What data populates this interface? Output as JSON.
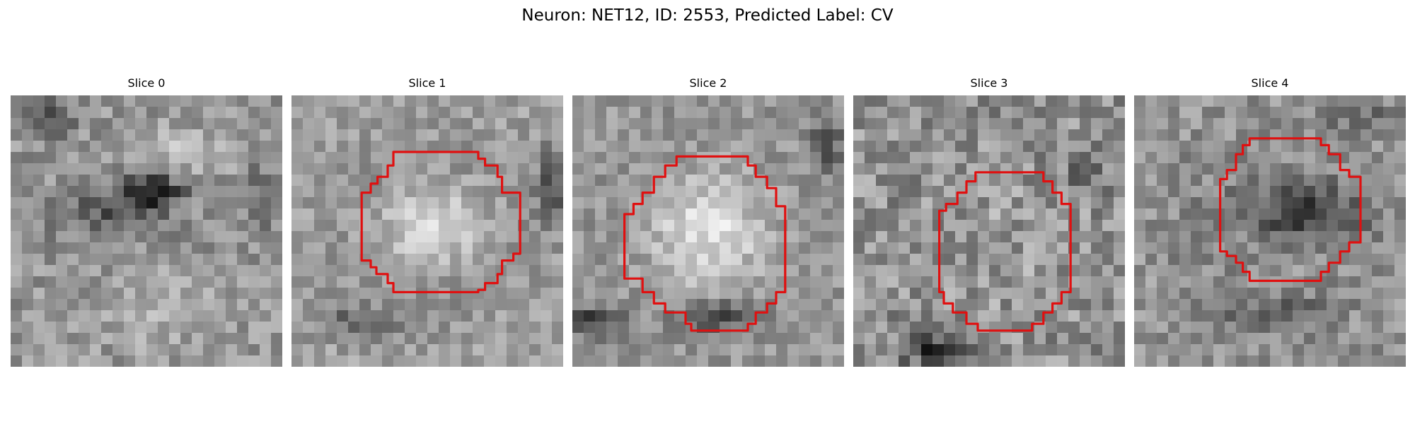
{
  "figure": {
    "title": "Neuron: NET12, ID: 2553, Predicted Label: CV"
  },
  "grid_cells": 24,
  "contour_color": "#e01010",
  "panels": [
    {
      "title": "Slice 0",
      "contour": [],
      "pattern": {
        "seed": 11,
        "base": 150,
        "noise": 70,
        "blobs": [
          {
            "cx": 12.5,
            "cy": 8.5,
            "rx": 3.0,
            "ry": 1.6,
            "d": -110
          },
          {
            "cx": 8.5,
            "cy": 10.5,
            "rx": 5.5,
            "ry": 2.5,
            "d": -60
          },
          {
            "cx": 3.5,
            "cy": 2.0,
            "rx": 2.5,
            "ry": 2.0,
            "d": -55
          },
          {
            "cx": 22.0,
            "cy": 9.0,
            "rx": 2.0,
            "ry": 4.0,
            "d": -40
          },
          {
            "cx": 16.0,
            "cy": 5.0,
            "rx": 4.0,
            "ry": 2.0,
            "d": 45
          },
          {
            "cx": 12.0,
            "cy": 19.0,
            "rx": 5.0,
            "ry": 3.0,
            "d": 35
          }
        ]
      }
    },
    {
      "title": "Slice 1",
      "contour": [
        [
          9.0,
          5.0
        ],
        [
          16.5,
          5.0
        ],
        [
          16.5,
          5.6
        ],
        [
          17.1,
          5.6
        ],
        [
          17.1,
          6.2
        ],
        [
          18.2,
          6.2
        ],
        [
          18.2,
          7.2
        ],
        [
          18.6,
          7.2
        ],
        [
          18.6,
          8.6
        ],
        [
          20.2,
          8.6
        ],
        [
          20.2,
          10.5
        ],
        [
          20.2,
          14.0
        ],
        [
          19.6,
          14.0
        ],
        [
          19.6,
          14.6
        ],
        [
          18.6,
          14.6
        ],
        [
          18.6,
          15.8
        ],
        [
          18.2,
          15.8
        ],
        [
          18.2,
          16.6
        ],
        [
          17.1,
          16.6
        ],
        [
          17.1,
          17.2
        ],
        [
          16.5,
          17.2
        ],
        [
          16.5,
          17.4
        ],
        [
          9.0,
          17.4
        ],
        [
          9.0,
          16.6
        ],
        [
          8.5,
          16.6
        ],
        [
          8.5,
          15.8
        ],
        [
          7.5,
          15.8
        ],
        [
          7.5,
          15.2
        ],
        [
          7.0,
          15.2
        ],
        [
          7.0,
          14.6
        ],
        [
          6.7,
          14.6
        ],
        [
          6.2,
          14.6
        ],
        [
          6.2,
          8.6
        ],
        [
          6.7,
          8.6
        ],
        [
          7.0,
          8.6
        ],
        [
          7.0,
          7.8
        ],
        [
          7.6,
          7.8
        ],
        [
          7.6,
          7.2
        ],
        [
          8.5,
          7.2
        ],
        [
          8.5,
          6.2
        ],
        [
          9.0,
          6.2
        ]
      ],
      "pattern": {
        "seed": 23,
        "base": 160,
        "noise": 60,
        "blobs": [
          {
            "cx": 12.5,
            "cy": 11.5,
            "rx": 7.5,
            "ry": 6.5,
            "d": -90
          },
          {
            "cx": 12.5,
            "cy": 11.5,
            "rx": 5.8,
            "ry": 4.8,
            "d": 150
          },
          {
            "cx": 23.0,
            "cy": 8.0,
            "rx": 1.5,
            "ry": 3.5,
            "d": -70
          },
          {
            "cx": 6.0,
            "cy": 20.0,
            "rx": 4.0,
            "ry": 1.5,
            "d": -60
          }
        ]
      }
    },
    {
      "title": "Slice 2",
      "contour": [
        [
          9.2,
          5.4
        ],
        [
          15.5,
          5.4
        ],
        [
          15.5,
          6.2
        ],
        [
          16.2,
          6.2
        ],
        [
          16.2,
          7.2
        ],
        [
          17.2,
          7.2
        ],
        [
          17.2,
          8.2
        ],
        [
          18.0,
          8.2
        ],
        [
          18.0,
          9.8
        ],
        [
          18.8,
          9.8
        ],
        [
          18.8,
          17.4
        ],
        [
          18.0,
          17.4
        ],
        [
          18.0,
          18.4
        ],
        [
          17.2,
          18.4
        ],
        [
          17.2,
          19.2
        ],
        [
          16.2,
          19.2
        ],
        [
          16.2,
          20.2
        ],
        [
          15.5,
          20.2
        ],
        [
          15.5,
          20.8
        ],
        [
          10.5,
          20.8
        ],
        [
          10.5,
          20.2
        ],
        [
          10.0,
          20.2
        ],
        [
          10.0,
          19.2
        ],
        [
          8.2,
          19.2
        ],
        [
          8.2,
          18.4
        ],
        [
          7.2,
          18.4
        ],
        [
          7.2,
          17.4
        ],
        [
          6.2,
          17.4
        ],
        [
          6.2,
          16.2
        ],
        [
          4.6,
          16.2
        ],
        [
          4.6,
          10.5
        ],
        [
          5.4,
          10.5
        ],
        [
          5.4,
          9.6
        ],
        [
          6.2,
          9.6
        ],
        [
          6.2,
          8.6
        ],
        [
          7.2,
          8.6
        ],
        [
          7.2,
          7.2
        ],
        [
          8.2,
          7.2
        ],
        [
          8.2,
          6.2
        ],
        [
          9.2,
          6.2
        ]
      ],
      "pattern": {
        "seed": 37,
        "base": 155,
        "noise": 60,
        "blobs": [
          {
            "cx": 12.0,
            "cy": 12.0,
            "rx": 8.5,
            "ry": 8.5,
            "d": -95
          },
          {
            "cx": 12.0,
            "cy": 12.0,
            "rx": 6.8,
            "ry": 6.8,
            "d": 160
          },
          {
            "cx": 12.5,
            "cy": 19.5,
            "rx": 3.5,
            "ry": 1.5,
            "d": -80
          },
          {
            "cx": 1.5,
            "cy": 20.0,
            "rx": 3.0,
            "ry": 1.5,
            "d": -90
          },
          {
            "cx": 22.5,
            "cy": 4.0,
            "rx": 1.5,
            "ry": 3.0,
            "d": -70
          }
        ]
      }
    },
    {
      "title": "Slice 3",
      "contour": [
        [
          10.8,
          6.8
        ],
        [
          16.8,
          6.8
        ],
        [
          16.8,
          7.6
        ],
        [
          17.6,
          7.6
        ],
        [
          17.6,
          8.6
        ],
        [
          18.4,
          8.6
        ],
        [
          18.4,
          9.6
        ],
        [
          19.2,
          9.6
        ],
        [
          19.2,
          17.4
        ],
        [
          18.4,
          17.4
        ],
        [
          18.4,
          18.4
        ],
        [
          17.6,
          18.4
        ],
        [
          17.6,
          19.2
        ],
        [
          16.8,
          19.2
        ],
        [
          16.8,
          20.2
        ],
        [
          15.8,
          20.2
        ],
        [
          15.8,
          20.8
        ],
        [
          11.0,
          20.8
        ],
        [
          11.0,
          20.2
        ],
        [
          10.0,
          20.2
        ],
        [
          10.0,
          19.2
        ],
        [
          8.8,
          19.2
        ],
        [
          8.8,
          18.4
        ],
        [
          8.0,
          18.4
        ],
        [
          8.0,
          17.4
        ],
        [
          7.6,
          17.4
        ],
        [
          7.6,
          10.2
        ],
        [
          8.2,
          10.2
        ],
        [
          8.2,
          9.6
        ],
        [
          9.2,
          9.6
        ],
        [
          9.2,
          8.6
        ],
        [
          10.0,
          8.6
        ],
        [
          10.0,
          7.6
        ],
        [
          10.8,
          7.6
        ]
      ],
      "pattern": {
        "seed": 53,
        "base": 145,
        "noise": 90,
        "blobs": [
          {
            "cx": 12.5,
            "cy": 13.5,
            "rx": 6.0,
            "ry": 6.5,
            "d": 10
          },
          {
            "cx": 7.0,
            "cy": 22.5,
            "rx": 3.0,
            "ry": 1.5,
            "d": -90
          },
          {
            "cx": 20.5,
            "cy": 6.5,
            "rx": 2.0,
            "ry": 2.0,
            "d": -50
          }
        ]
      }
    },
    {
      "title": "Slice 4",
      "contour": [
        [
          10.2,
          3.8
        ],
        [
          16.5,
          3.8
        ],
        [
          16.5,
          4.4
        ],
        [
          17.2,
          4.4
        ],
        [
          17.2,
          5.2
        ],
        [
          18.2,
          5.2
        ],
        [
          18.2,
          6.6
        ],
        [
          19.0,
          6.6
        ],
        [
          19.0,
          7.2
        ],
        [
          20.0,
          7.2
        ],
        [
          20.0,
          13.0
        ],
        [
          19.0,
          13.0
        ],
        [
          19.0,
          13.8
        ],
        [
          18.2,
          13.8
        ],
        [
          18.2,
          14.8
        ],
        [
          17.2,
          14.8
        ],
        [
          17.2,
          15.6
        ],
        [
          16.5,
          15.6
        ],
        [
          16.5,
          16.4
        ],
        [
          10.2,
          16.4
        ],
        [
          10.2,
          15.6
        ],
        [
          9.6,
          15.6
        ],
        [
          9.6,
          14.8
        ],
        [
          9.0,
          14.8
        ],
        [
          9.0,
          14.2
        ],
        [
          8.2,
          14.2
        ],
        [
          8.2,
          13.8
        ],
        [
          7.6,
          13.8
        ],
        [
          7.6,
          13.0
        ],
        [
          7.6,
          7.4
        ],
        [
          8.2,
          7.4
        ],
        [
          8.2,
          6.6
        ],
        [
          9.0,
          6.6
        ],
        [
          9.0,
          5.2
        ],
        [
          9.6,
          5.2
        ],
        [
          9.6,
          4.4
        ],
        [
          10.2,
          4.4
        ]
      ],
      "pattern": {
        "seed": 71,
        "base": 150,
        "noise": 70,
        "blobs": [
          {
            "cx": 14.5,
            "cy": 10.5,
            "rx": 5.5,
            "ry": 2.8,
            "d": -90
          },
          {
            "cx": 13.0,
            "cy": 12.0,
            "rx": 8.5,
            "ry": 8.0,
            "d": -55
          },
          {
            "cx": 13.0,
            "cy": 12.0,
            "rx": 6.5,
            "ry": 6.0,
            "d": 60
          },
          {
            "cx": 12.5,
            "cy": 19.5,
            "rx": 4.5,
            "ry": 1.5,
            "d": -60
          },
          {
            "cx": 20.0,
            "cy": 1.5,
            "rx": 4.0,
            "ry": 1.5,
            "d": -40
          }
        ]
      }
    }
  ]
}
